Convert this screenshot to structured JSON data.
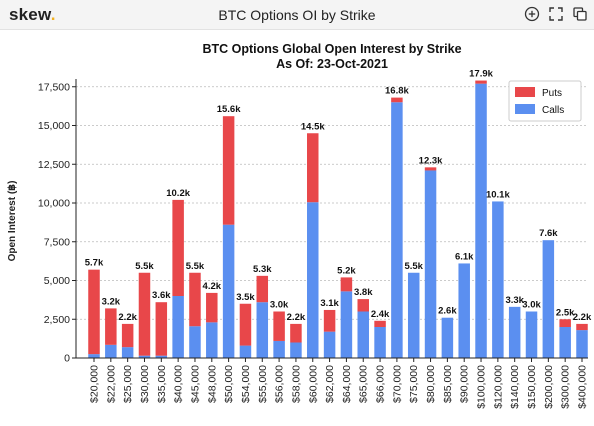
{
  "app": {
    "logo_text": "skew",
    "logo_dot": ".",
    "window_title": "BTC Options OI by Strike"
  },
  "toolbar": {
    "icons": [
      "zoom-in-icon",
      "fullscreen-icon",
      "copy-icon"
    ]
  },
  "colors": {
    "puts": "#e8474a",
    "calls": "#5b8ff0",
    "accent": "#f2b01e"
  },
  "chart_data": {
    "type": "bar",
    "stacked": true,
    "title": "BTC Options Global Open Interest by Strike",
    "subtitle": "As Of: 23-Oct-2021",
    "ylabel": "Open Interest (฿)",
    "xlabel": "",
    "ylim": [
      0,
      18000
    ],
    "yticks": [
      0,
      2500,
      5000,
      7500,
      10000,
      12500,
      15000,
      17500
    ],
    "ytick_labels": [
      "0",
      "2,500",
      "5,000",
      "7,500",
      "10,000",
      "12,500",
      "15,000",
      "17,500"
    ],
    "grid": true,
    "legend_position": "top-right",
    "categories": [
      "$20,000",
      "$22,000",
      "$25,000",
      "$30,000",
      "$35,000",
      "$40,000",
      "$45,000",
      "$48,000",
      "$50,000",
      "$54,000",
      "$55,000",
      "$56,000",
      "$58,000",
      "$60,000",
      "$62,000",
      "$64,000",
      "$65,000",
      "$66,000",
      "$70,000",
      "$75,000",
      "$80,000",
      "$85,000",
      "$90,000",
      "$100,000",
      "$120,000",
      "$140,000",
      "$150,000",
      "$200,000",
      "$300,000",
      "$400,000"
    ],
    "series": [
      {
        "name": "Puts",
        "values": [
          5450,
          2350,
          1500,
          5350,
          3450,
          6200,
          3450,
          1900,
          7000,
          2700,
          1700,
          1900,
          1200,
          4450,
          1400,
          900,
          800,
          400,
          300,
          0,
          200,
          0,
          0,
          200,
          0,
          0,
          0,
          0,
          500,
          400
        ]
      },
      {
        "name": "Calls",
        "values": [
          250,
          850,
          700,
          150,
          150,
          4000,
          2050,
          2300,
          8600,
          800,
          3600,
          1100,
          1000,
          10050,
          1700,
          4300,
          3000,
          2000,
          16500,
          5500,
          12100,
          2600,
          6100,
          17700,
          10100,
          3300,
          3000,
          7600,
          2000,
          1800
        ]
      }
    ],
    "total_labels": [
      "5.7k",
      "3.2k",
      "2.2k",
      "5.5k",
      "3.6k",
      "10.2k",
      "5.5k",
      "4.2k",
      "15.6k",
      "3.5k",
      "5.3k",
      "3.0k",
      "2.2k",
      "14.5k",
      "3.1k",
      "5.2k",
      "3.8k",
      "2.4k",
      "16.8k",
      "5.5k",
      "12.3k",
      "2.6k",
      "6.1k",
      "17.9k",
      "10.1k",
      "3.3k",
      "3.0k",
      "7.6k",
      "2.5k",
      "2.2k"
    ]
  }
}
